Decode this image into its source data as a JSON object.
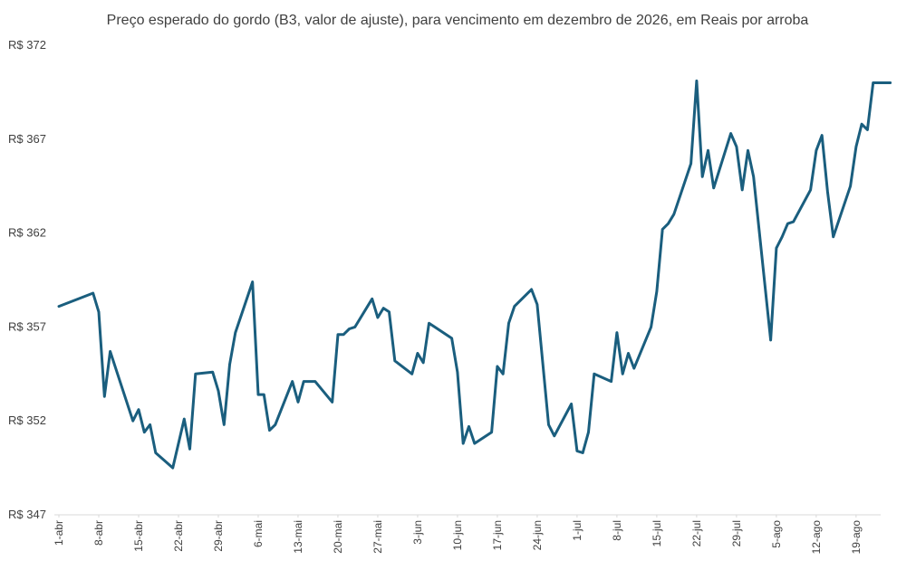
{
  "chart_data": {
    "type": "line",
    "title": "Preço esperado do gordo (B3, valor de ajuste), para vencimento em dezembro de 2026, em Reais por arroba",
    "xlabel": "",
    "ylabel": "",
    "y_prefix": "R$ ",
    "ylim": [
      347,
      372
    ],
    "yticks": [
      347,
      352,
      357,
      362,
      367,
      372
    ],
    "grid": false,
    "legend": "none",
    "line_color": "#1a5e7e",
    "x_start": "1-abr",
    "x_end": "23-ago",
    "xtick_labels": [
      "1-abr",
      "8-abr",
      "15-abr",
      "22-abr",
      "29-abr",
      "6-mai",
      "13-mai",
      "20-mai",
      "27-mai",
      "3-jun",
      "10-jun",
      "17-jun",
      "24-jun",
      "1-jul",
      "8-jul",
      "15-jul",
      "22-jul",
      "29-jul",
      "5-ago",
      "12-ago",
      "19-ago"
    ],
    "series": [
      {
        "x": [
          "1-abr",
          "7-abr",
          "8-abr",
          "9-abr",
          "10-abr",
          "14-abr",
          "15-abr",
          "16-abr",
          "17-abr",
          "18-abr",
          "21-abr",
          "23-abr",
          "24-abr",
          "25-abr",
          "28-abr",
          "29-abr",
          "30-abr",
          "1-mai",
          "2-mai",
          "5-mai",
          "6-mai",
          "7-mai",
          "8-mai",
          "9-mai",
          "12-mai",
          "13-mai",
          "14-mai",
          "15-mai",
          "16-mai",
          "19-mai",
          "20-mai",
          "21-mai",
          "22-mai",
          "23-mai",
          "26-mai",
          "27-mai",
          "28-mai",
          "29-mai",
          "30-mai",
          "2-jun",
          "3-jun",
          "4-jun",
          "5-jun",
          "6-jun",
          "9-jun",
          "10-jun",
          "11-jun",
          "12-jun",
          "13-jun",
          "16-jun",
          "17-jun",
          "18-jun",
          "19-jun",
          "20-jun",
          "23-jun",
          "24-jun",
          "25-jun",
          "26-jun",
          "27-jun",
          "30-jun",
          "1-jul",
          "2-jul",
          "3-jul",
          "4-jul",
          "7-jul",
          "8-jul",
          "9-jul",
          "10-jul",
          "11-jul",
          "14-jul",
          "15-jul",
          "16-jul",
          "17-jul",
          "18-jul",
          "21-jul",
          "22-jul",
          "23-jul",
          "24-jul",
          "25-jul",
          "28-jul",
          "29-jul",
          "30-jul",
          "31-jul",
          "1-ago",
          "4-ago",
          "5-ago",
          "6-ago",
          "7-ago",
          "8-ago",
          "11-ago",
          "12-ago",
          "13-ago",
          "14-ago",
          "15-ago",
          "18-ago",
          "19-ago",
          "20-ago",
          "21-ago",
          "22-ago",
          "25-ago"
        ],
        "values": [
          358.1,
          358.8,
          357.8,
          353.3,
          355.7,
          352.0,
          352.6,
          351.4,
          351.8,
          350.3,
          349.5,
          352.1,
          350.5,
          354.5,
          354.6,
          353.6,
          351.8,
          355.0,
          356.7,
          359.4,
          353.4,
          353.4,
          351.5,
          351.8,
          354.1,
          353.0,
          354.1,
          354.1,
          354.1,
          353.0,
          356.6,
          356.6,
          356.9,
          357.0,
          358.5,
          357.5,
          358.0,
          357.8,
          355.2,
          354.5,
          355.6,
          355.1,
          357.2,
          357.0,
          356.4,
          354.6,
          350.8,
          351.7,
          350.8,
          351.4,
          354.9,
          354.5,
          357.2,
          358.1,
          359.0,
          358.2,
          355.0,
          351.8,
          351.2,
          352.9,
          350.4,
          350.3,
          351.4,
          354.5,
          354.1,
          356.7,
          354.5,
          355.6,
          354.8,
          357.0,
          358.9,
          362.2,
          362.5,
          363.0,
          365.7,
          370.1,
          365.0,
          366.4,
          364.4,
          367.3,
          366.6,
          364.3,
          366.4,
          365.0,
          356.3,
          361.2,
          361.8,
          362.5,
          362.6,
          364.3,
          366.4,
          367.2,
          364.2,
          361.8,
          364.5,
          366.6,
          367.8,
          367.5,
          370.0,
          370.0
        ]
      }
    ]
  }
}
